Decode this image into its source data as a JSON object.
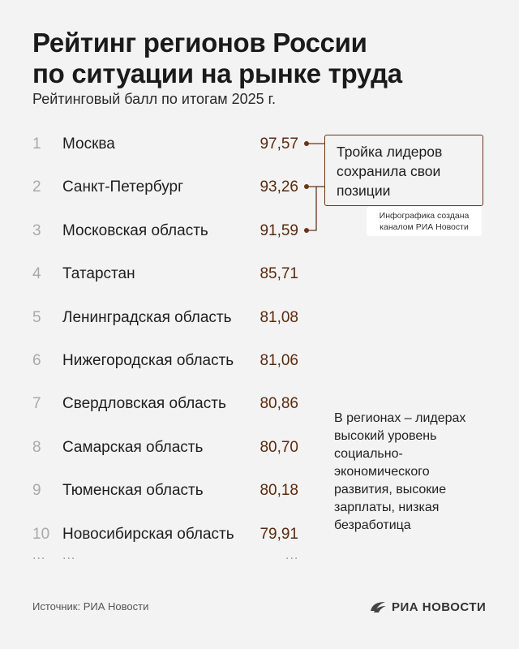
{
  "header": {
    "title_line1": "Рейтинг регионов России",
    "title_line2": "по ситуации на рынке труда",
    "subtitle": "Рейтинговый балл по итогам 2025 г."
  },
  "chart_data": {
    "type": "table",
    "title": "Рейтинг регионов России по ситуации на рынке труда",
    "subtitle": "Рейтинговый балл по итогам 2025 г.",
    "rows": [
      {
        "rank": "1",
        "region": "Москва",
        "score": "97,57"
      },
      {
        "rank": "2",
        "region": "Санкт-Петербург",
        "score": "93,26"
      },
      {
        "rank": "3",
        "region": "Московская область",
        "score": "91,59"
      },
      {
        "rank": "4",
        "region": "Татарстан",
        "score": "85,71"
      },
      {
        "rank": "5",
        "region": "Ленинградская область",
        "score": "81,08"
      },
      {
        "rank": "6",
        "region": "Нижегородская область",
        "score": "81,06"
      },
      {
        "rank": "7",
        "region": "Свердловская область",
        "score": "80,86"
      },
      {
        "rank": "8",
        "region": "Самарская область",
        "score": "80,70"
      },
      {
        "rank": "9",
        "region": "Тюменская область",
        "score": "80,18"
      },
      {
        "rank": "10",
        "region": "Новосибирская область",
        "score": "79,91"
      }
    ],
    "ellipsis": "...",
    "accent_color": "#6a3516"
  },
  "callout": {
    "line1": "Тройка лидеров",
    "line2": "сохранила свои",
    "line3": "позиции"
  },
  "credit": {
    "line1": "Инфографика создана",
    "line2": "каналом РИА Новости"
  },
  "note": {
    "lines": [
      "В регионах – лидерах",
      "высокий уровень",
      "социально-",
      "экономического",
      "развития, высокие",
      "зарплаты, низкая",
      "безработица"
    ]
  },
  "footer": {
    "source": "Источник: РИА Новости",
    "brand": "РИА НОВОСТИ",
    "brand_icon": "ria-logo-icon"
  }
}
